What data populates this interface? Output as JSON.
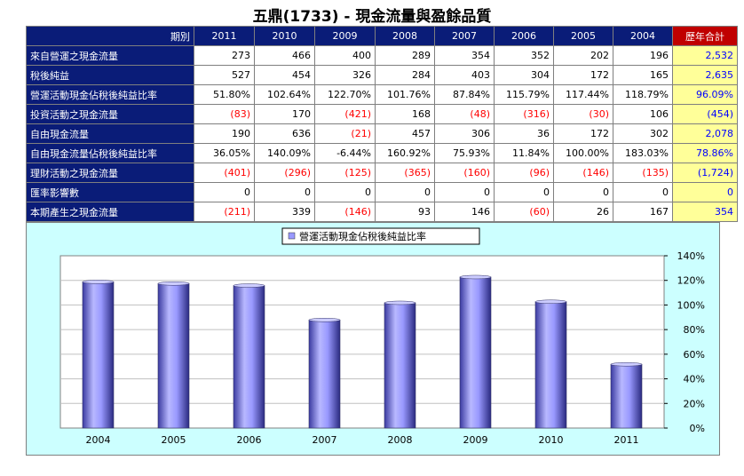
{
  "page": {
    "title": "五鼎(1733) -  現金流量與盈餘品質"
  },
  "table": {
    "corner_label": "期別",
    "columns": [
      "2011",
      "2010",
      "2009",
      "2008",
      "2007",
      "2006",
      "2005",
      "2004"
    ],
    "total_label": "歷年合計",
    "rows": [
      {
        "label": "來自營運之現金流量",
        "values": [
          "273",
          "466",
          "400",
          "289",
          "354",
          "352",
          "202",
          "196"
        ],
        "total": "2,532"
      },
      {
        "label": "稅後純益",
        "values": [
          "527",
          "454",
          "326",
          "284",
          "403",
          "304",
          "172",
          "165"
        ],
        "total": "2,635"
      },
      {
        "label": "營運活動現金佔稅後純益比率",
        "values": [
          "51.80%",
          "102.64%",
          "122.70%",
          "101.76%",
          "87.84%",
          "115.79%",
          "117.44%",
          "118.79%"
        ],
        "total": "96.09%"
      },
      {
        "label": "投資活動之現金流量",
        "values": [
          "(83)",
          "170",
          "(421)",
          "168",
          "(48)",
          "(316)",
          "(30)",
          "106"
        ],
        "total": "(454)"
      },
      {
        "label": "自由現金流量",
        "values": [
          "190",
          "636",
          "(21)",
          "457",
          "306",
          "36",
          "172",
          "302"
        ],
        "total": "2,078"
      },
      {
        "label": "自由現金流量佔稅後純益比率",
        "values": [
          "36.05%",
          "140.09%",
          "-6.44%",
          "160.92%",
          "75.93%",
          "11.84%",
          "100.00%",
          "183.03%"
        ],
        "total": "78.86%"
      },
      {
        "label": "理財活動之現金流量",
        "values": [
          "(401)",
          "(296)",
          "(125)",
          "(365)",
          "(160)",
          "(96)",
          "(146)",
          "(135)"
        ],
        "total": "(1,724)"
      },
      {
        "label": "匯率影響數",
        "values": [
          "0",
          "0",
          "0",
          "0",
          "0",
          "0",
          "0",
          "0"
        ],
        "total": "0"
      },
      {
        "label": "本期產生之現金流量",
        "values": [
          "(211)",
          "339",
          "(146)",
          "93",
          "146",
          "(60)",
          "26",
          "167"
        ],
        "total": "354"
      }
    ]
  },
  "colors": {
    "header_bg": "#0a1c78",
    "total_header_bg": "#c00000",
    "total_bg": "#ffff99",
    "total_text": "#0000ff",
    "negative_text": "#ff0000",
    "chart_bg": "#ccffff",
    "bar_fill": "#9999ff"
  },
  "chart_data": {
    "type": "bar",
    "categories": [
      "2004",
      "2005",
      "2006",
      "2007",
      "2008",
      "2009",
      "2010",
      "2011"
    ],
    "series": [
      {
        "name": "營運活動現金佔稅後純益比率",
        "values": [
          118.79,
          117.44,
          115.79,
          87.84,
          101.76,
          122.7,
          102.64,
          51.8
        ]
      }
    ],
    "y_ticks": [
      "0%",
      "20%",
      "40%",
      "60%",
      "80%",
      "100%",
      "120%",
      "140%"
    ],
    "ylim": [
      0,
      140
    ],
    "y_axis_side": "right",
    "grid": true,
    "legend_position": "top-center"
  }
}
